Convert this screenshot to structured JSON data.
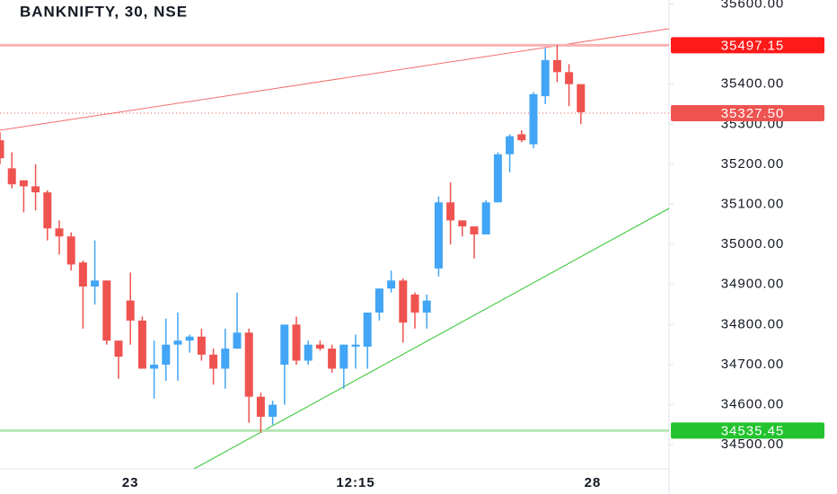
{
  "chart_data": {
    "type": "candlestick",
    "title": "BANKNIFTY, 30, NSE",
    "categories": [
      null,
      null,
      null,
      null,
      null,
      null,
      null,
      null,
      null,
      null,
      null,
      "23",
      null,
      null,
      null,
      null,
      null,
      null,
      null,
      null,
      null,
      null,
      null,
      null,
      null,
      null,
      null,
      null,
      null,
      null,
      "12:15",
      null,
      null,
      null,
      null,
      null,
      null,
      null,
      null,
      null,
      null,
      null,
      null,
      null,
      null,
      null,
      null,
      null,
      null,
      null,
      "28"
    ],
    "open": [
      35260,
      35190,
      35160,
      35145,
      35130,
      35040,
      35020,
      34955,
      34895,
      34910,
      34760,
      34860,
      34810,
      34690,
      34700,
      34750,
      34760,
      34770,
      34725,
      34690,
      34740,
      34780,
      34620,
      34570,
      34700,
      34800,
      34710,
      34750,
      34740,
      34690,
      34745,
      34745,
      34830,
      34890,
      34910,
      34875,
      34830,
      34940,
      35105,
      35060,
      35045,
      35025,
      35105,
      35225,
      35275,
      35250,
      35370,
      35460,
      35430,
      35400,
      null
    ],
    "high": [
      35280,
      35230,
      35160,
      35200,
      35135,
      35060,
      35030,
      34960,
      35010,
      34910,
      34760,
      34930,
      34820,
      34760,
      34815,
      34830,
      34775,
      34790,
      34740,
      34790,
      34880,
      34790,
      34630,
      34610,
      34800,
      34820,
      34760,
      34760,
      34750,
      34750,
      34775,
      34830,
      34890,
      34935,
      34915,
      34880,
      34875,
      35120,
      35155,
      35060,
      35045,
      35110,
      35230,
      35275,
      35285,
      35380,
      35490,
      35497,
      35450,
      35400,
      null
    ],
    "low": [
      35200,
      35140,
      35080,
      35085,
      35010,
      34975,
      34935,
      34790,
      34850,
      34750,
      34665,
      34750,
      34690,
      34615,
      34660,
      34660,
      34730,
      34710,
      34650,
      34640,
      34740,
      34555,
      34530,
      34550,
      34600,
      34700,
      34700,
      34735,
      34680,
      34640,
      34690,
      34690,
      34810,
      34880,
      34755,
      34790,
      34790,
      34920,
      35000,
      35020,
      34965,
      35025,
      35105,
      35180,
      35255,
      35240,
      35350,
      35405,
      35345,
      35300,
      null
    ],
    "close": [
      35215,
      35150,
      35145,
      35130,
      35040,
      35020,
      34950,
      34895,
      34910,
      34760,
      34720,
      34810,
      34690,
      34700,
      34750,
      34760,
      34770,
      34725,
      34690,
      34740,
      34780,
      34620,
      34570,
      34600,
      34800,
      34710,
      34750,
      34740,
      34690,
      34750,
      34750,
      34830,
      34890,
      34910,
      34805,
      34830,
      34860,
      35105,
      35060,
      35045,
      35025,
      35105,
      35225,
      35270,
      35260,
      35375,
      35460,
      35430,
      35400,
      35330,
      null
    ],
    "up_color": "#42a5f5",
    "down_color": "#ef5350",
    "ylim": [
      34440,
      35610
    ],
    "yticks": [
      {
        "value": 34500,
        "label": "34500.00"
      },
      {
        "value": 34600,
        "label": "34600.00"
      },
      {
        "value": 34700,
        "label": "34700.00"
      },
      {
        "value": 34800,
        "label": "34800.00"
      },
      {
        "value": 34900,
        "label": "34900.00"
      },
      {
        "value": 35000,
        "label": "35000.00"
      },
      {
        "value": 35100,
        "label": "35100.00"
      },
      {
        "value": 35200,
        "label": "35200.00"
      },
      {
        "value": 35300,
        "label": "35300.00"
      },
      {
        "value": 35400,
        "label": "35400.00"
      },
      {
        "value": 35600,
        "label": "35600.00"
      }
    ],
    "price_lines": [
      {
        "value": 35497.15,
        "color": "#ff1a1a",
        "line_color": "#f7b3b3",
        "style": "solid"
      },
      {
        "value": 35327.5,
        "label": "35327.50",
        "color": "#ef5350",
        "line_color": "#ef5350",
        "style": "dotted"
      },
      {
        "value": 34535.45,
        "color": "#22c32e",
        "line_color": "#b5e6b5",
        "style": "solid"
      }
    ]
  }
}
